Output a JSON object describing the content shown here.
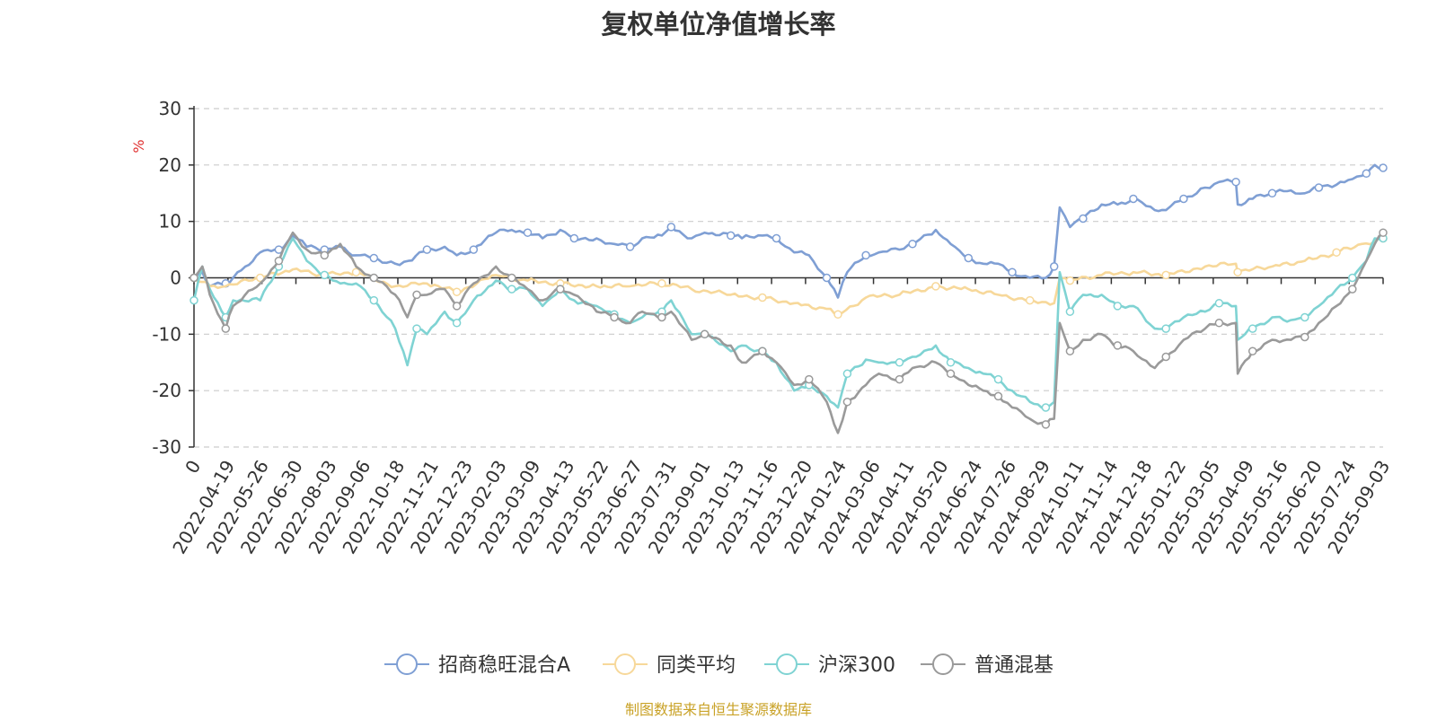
{
  "chart_data": {
    "type": "line",
    "title": "复权单位净值增长率",
    "ylabel": "%",
    "ylim": [
      -30,
      30
    ],
    "yticks": [
      -30,
      -20,
      -10,
      0,
      10,
      20,
      30
    ],
    "grid": true,
    "legend_position": "bottom",
    "x_start": "2022-03-16",
    "x_end": "2025-09-12",
    "x_ticks": [
      "0",
      "2022-04-19",
      "2022-05-26",
      "2022-06-30",
      "2022-08-03",
      "2022-09-06",
      "2022-10-18",
      "2022-11-21",
      "2022-12-23",
      "2023-02-03",
      "2023-03-09",
      "2023-04-13",
      "2023-05-22",
      "2023-06-27",
      "2023-07-31",
      "2023-09-01",
      "2023-10-13",
      "2023-11-16",
      "2023-12-20",
      "2024-01-24",
      "2024-03-06",
      "2024-04-11",
      "2024-05-20",
      "2024-06-24",
      "2024-07-26",
      "2024-08-29",
      "2024-10-11",
      "2024-11-14",
      "2024-12-18",
      "2025-01-22",
      "2025-03-05",
      "2025-04-09",
      "2025-05-16",
      "2025-06-20",
      "2025-07-24",
      "2025-09-03"
    ],
    "series": [
      {
        "name": "招商稳旺混合A",
        "color": "#7f9fd4",
        "points": [
          [
            "2022-03-16",
            0
          ],
          [
            "2022-03-25",
            1
          ],
          [
            "2022-04-02",
            -1.5
          ],
          [
            "2022-04-19",
            -1
          ],
          [
            "2022-05-10",
            2
          ],
          [
            "2022-05-26",
            4.5
          ],
          [
            "2022-06-15",
            5
          ],
          [
            "2022-06-30",
            7.5
          ],
          [
            "2022-07-15",
            5.5
          ],
          [
            "2022-08-03",
            5
          ],
          [
            "2022-08-20",
            5.5
          ],
          [
            "2022-09-06",
            4
          ],
          [
            "2022-09-25",
            3.5
          ],
          [
            "2022-10-18",
            2.5
          ],
          [
            "2022-11-01",
            3
          ],
          [
            "2022-11-21",
            5
          ],
          [
            "2022-12-10",
            5.5
          ],
          [
            "2022-12-23",
            4
          ],
          [
            "2023-01-10",
            5
          ],
          [
            "2023-02-03",
            8
          ],
          [
            "2023-02-20",
            8.5
          ],
          [
            "2023-03-09",
            8
          ],
          [
            "2023-03-25",
            7
          ],
          [
            "2023-04-13",
            8.5
          ],
          [
            "2023-04-28",
            7
          ],
          [
            "2023-05-22",
            7
          ],
          [
            "2023-06-10",
            6
          ],
          [
            "2023-06-27",
            5.5
          ],
          [
            "2023-07-10",
            7
          ],
          [
            "2023-07-31",
            7.5
          ],
          [
            "2023-08-10",
            9
          ],
          [
            "2023-09-01",
            7
          ],
          [
            "2023-09-15",
            8
          ],
          [
            "2023-10-13",
            7.5
          ],
          [
            "2023-10-25",
            7
          ],
          [
            "2023-11-16",
            7.5
          ],
          [
            "2023-12-01",
            7
          ],
          [
            "2023-12-20",
            4.5
          ],
          [
            "2024-01-05",
            4
          ],
          [
            "2024-01-24",
            0
          ],
          [
            "2024-02-05",
            -3.5
          ],
          [
            "2024-02-15",
            1
          ],
          [
            "2024-03-06",
            4
          ],
          [
            "2024-03-20",
            4.5
          ],
          [
            "2024-04-11",
            5
          ],
          [
            "2024-04-25",
            6
          ],
          [
            "2024-05-20",
            8.5
          ],
          [
            "2024-06-05",
            6
          ],
          [
            "2024-06-24",
            3.5
          ],
          [
            "2024-07-10",
            2.5
          ],
          [
            "2024-07-26",
            2.5
          ],
          [
            "2024-08-10",
            1
          ],
          [
            "2024-08-29",
            0
          ],
          [
            "2024-09-15",
            0
          ],
          [
            "2024-09-24",
            2
          ],
          [
            "2024-09-30",
            12.5
          ],
          [
            "2024-10-11",
            9
          ],
          [
            "2024-10-25",
            10.5
          ],
          [
            "2024-11-14",
            13
          ],
          [
            "2024-12-01",
            13
          ],
          [
            "2024-12-18",
            14
          ],
          [
            "2025-01-10",
            12
          ],
          [
            "2025-01-22",
            12
          ],
          [
            "2025-02-10",
            14
          ],
          [
            "2025-03-05",
            16
          ],
          [
            "2025-03-20",
            17
          ],
          [
            "2025-04-07",
            17
          ],
          [
            "2025-04-09",
            13
          ],
          [
            "2025-04-25",
            14
          ],
          [
            "2025-05-16",
            15
          ],
          [
            "2025-06-05",
            15.5
          ],
          [
            "2025-06-20",
            15
          ],
          [
            "2025-07-05",
            16
          ],
          [
            "2025-07-24",
            16.5
          ],
          [
            "2025-08-10",
            17.5
          ],
          [
            "2025-08-25",
            18.5
          ],
          [
            "2025-09-03",
            20
          ],
          [
            "2025-09-12",
            19.5
          ]
        ]
      },
      {
        "name": "同类平均",
        "color": "#f7d89a",
        "points": [
          [
            "2022-03-16",
            0
          ],
          [
            "2022-04-02",
            -1.5
          ],
          [
            "2022-04-19",
            -1.5
          ],
          [
            "2022-05-26",
            0
          ],
          [
            "2022-06-30",
            1.5
          ],
          [
            "2022-08-03",
            0.5
          ],
          [
            "2022-09-06",
            1
          ],
          [
            "2022-10-18",
            -1.5
          ],
          [
            "2022-11-21",
            -1
          ],
          [
            "2022-12-23",
            -2.5
          ],
          [
            "2023-02-03",
            0.5
          ],
          [
            "2023-03-09",
            -0.5
          ],
          [
            "2023-04-13",
            -1
          ],
          [
            "2023-05-22",
            -1.5
          ],
          [
            "2023-06-27",
            -1.5
          ],
          [
            "2023-07-31",
            -1
          ],
          [
            "2023-09-01",
            -2
          ],
          [
            "2023-10-13",
            -3
          ],
          [
            "2023-11-16",
            -3.5
          ],
          [
            "2023-12-20",
            -4.5
          ],
          [
            "2024-01-24",
            -5.5
          ],
          [
            "2024-02-05",
            -6.5
          ],
          [
            "2024-03-06",
            -3.5
          ],
          [
            "2024-04-11",
            -3
          ],
          [
            "2024-05-20",
            -1.5
          ],
          [
            "2024-06-24",
            -2
          ],
          [
            "2024-07-26",
            -3
          ],
          [
            "2024-08-29",
            -4
          ],
          [
            "2024-09-24",
            -4.5
          ],
          [
            "2024-09-30",
            0
          ],
          [
            "2024-10-11",
            -0.5
          ],
          [
            "2024-11-14",
            0.5
          ],
          [
            "2024-12-18",
            1
          ],
          [
            "2025-01-22",
            0.5
          ],
          [
            "2025-03-05",
            2
          ],
          [
            "2025-04-07",
            2.5
          ],
          [
            "2025-04-09",
            1
          ],
          [
            "2025-05-16",
            2
          ],
          [
            "2025-06-20",
            3
          ],
          [
            "2025-07-24",
            4.5
          ],
          [
            "2025-08-20",
            6
          ],
          [
            "2025-09-12",
            7
          ]
        ]
      },
      {
        "name": "沪深300",
        "color": "#7fd3d3",
        "points": [
          [
            "2022-03-16",
            -4
          ],
          [
            "2022-03-25",
            2
          ],
          [
            "2022-04-02",
            -2
          ],
          [
            "2022-04-19",
            -7
          ],
          [
            "2022-04-27",
            -4
          ],
          [
            "2022-05-26",
            -4
          ],
          [
            "2022-06-15",
            2
          ],
          [
            "2022-06-30",
            7
          ],
          [
            "2022-07-15",
            3
          ],
          [
            "2022-08-03",
            0.5
          ],
          [
            "2022-08-20",
            -1
          ],
          [
            "2022-09-06",
            -1
          ],
          [
            "2022-09-25",
            -4
          ],
          [
            "2022-10-18",
            -9
          ],
          [
            "2022-10-31",
            -15.5
          ],
          [
            "2022-11-10",
            -9
          ],
          [
            "2022-11-21",
            -10
          ],
          [
            "2022-12-10",
            -6
          ],
          [
            "2022-12-23",
            -8
          ],
          [
            "2023-01-10",
            -4
          ],
          [
            "2023-02-03",
            -0.5
          ],
          [
            "2023-02-20",
            -2
          ],
          [
            "2023-03-09",
            -2
          ],
          [
            "2023-03-25",
            -5
          ],
          [
            "2023-04-13",
            -2
          ],
          [
            "2023-04-28",
            -4
          ],
          [
            "2023-05-22",
            -5
          ],
          [
            "2023-06-10",
            -6.5
          ],
          [
            "2023-06-27",
            -8
          ],
          [
            "2023-07-10",
            -7
          ],
          [
            "2023-07-31",
            -6
          ],
          [
            "2023-08-10",
            -4
          ],
          [
            "2023-09-01",
            -10
          ],
          [
            "2023-09-15",
            -10
          ],
          [
            "2023-10-13",
            -13
          ],
          [
            "2023-10-25",
            -12
          ],
          [
            "2023-11-16",
            -13
          ],
          [
            "2023-12-01",
            -15
          ],
          [
            "2023-12-20",
            -20
          ],
          [
            "2024-01-05",
            -19
          ],
          [
            "2024-01-24",
            -21
          ],
          [
            "2024-02-05",
            -23
          ],
          [
            "2024-02-15",
            -17
          ],
          [
            "2024-03-06",
            -14.5
          ],
          [
            "2024-03-20",
            -15
          ],
          [
            "2024-04-11",
            -15
          ],
          [
            "2024-04-25",
            -14
          ],
          [
            "2024-05-20",
            -12
          ],
          [
            "2024-06-05",
            -15
          ],
          [
            "2024-06-24",
            -16
          ],
          [
            "2024-07-10",
            -17
          ],
          [
            "2024-07-26",
            -18
          ],
          [
            "2024-08-10",
            -20
          ],
          [
            "2024-08-29",
            -22
          ],
          [
            "2024-09-15",
            -23
          ],
          [
            "2024-09-24",
            -22
          ],
          [
            "2024-09-30",
            1
          ],
          [
            "2024-10-11",
            -6
          ],
          [
            "2024-10-25",
            -3
          ],
          [
            "2024-11-14",
            -3
          ],
          [
            "2024-12-01",
            -5
          ],
          [
            "2024-12-18",
            -5
          ],
          [
            "2025-01-10",
            -9
          ],
          [
            "2025-01-22",
            -9
          ],
          [
            "2025-02-10",
            -7
          ],
          [
            "2025-03-05",
            -6
          ],
          [
            "2025-03-20",
            -4.5
          ],
          [
            "2025-04-07",
            -5
          ],
          [
            "2025-04-09",
            -11
          ],
          [
            "2025-04-25",
            -9
          ],
          [
            "2025-05-16",
            -7
          ],
          [
            "2025-06-05",
            -7.5
          ],
          [
            "2025-06-20",
            -7
          ],
          [
            "2025-07-05",
            -5
          ],
          [
            "2025-07-24",
            -2
          ],
          [
            "2025-08-10",
            0
          ],
          [
            "2025-08-25",
            3
          ],
          [
            "2025-09-03",
            7
          ],
          [
            "2025-09-12",
            7
          ]
        ]
      },
      {
        "name": "普通混基",
        "color": "#9a9a9a",
        "points": [
          [
            "2022-03-16",
            0
          ],
          [
            "2022-03-25",
            2
          ],
          [
            "2022-04-02",
            -3
          ],
          [
            "2022-04-19",
            -9
          ],
          [
            "2022-04-27",
            -5
          ],
          [
            "2022-05-26",
            -1
          ],
          [
            "2022-06-15",
            3
          ],
          [
            "2022-06-30",
            8
          ],
          [
            "2022-07-15",
            5
          ],
          [
            "2022-08-03",
            4
          ],
          [
            "2022-08-20",
            6
          ],
          [
            "2022-09-06",
            2
          ],
          [
            "2022-09-25",
            0
          ],
          [
            "2022-10-18",
            -3
          ],
          [
            "2022-10-31",
            -7
          ],
          [
            "2022-11-10",
            -3
          ],
          [
            "2022-11-21",
            -3
          ],
          [
            "2022-12-10",
            -2
          ],
          [
            "2022-12-23",
            -5
          ],
          [
            "2023-01-10",
            -1
          ],
          [
            "2023-02-03",
            2
          ],
          [
            "2023-02-20",
            0
          ],
          [
            "2023-03-09",
            -2
          ],
          [
            "2023-03-25",
            -4
          ],
          [
            "2023-04-13",
            -2
          ],
          [
            "2023-04-28",
            -3
          ],
          [
            "2023-05-22",
            -6
          ],
          [
            "2023-06-10",
            -7
          ],
          [
            "2023-06-27",
            -8
          ],
          [
            "2023-07-10",
            -6
          ],
          [
            "2023-07-31",
            -7
          ],
          [
            "2023-08-10",
            -6
          ],
          [
            "2023-09-01",
            -11
          ],
          [
            "2023-09-15",
            -10
          ],
          [
            "2023-10-13",
            -12
          ],
          [
            "2023-10-25",
            -15
          ],
          [
            "2023-11-16",
            -13
          ],
          [
            "2023-12-01",
            -15
          ],
          [
            "2023-12-20",
            -19
          ],
          [
            "2024-01-05",
            -18
          ],
          [
            "2024-01-24",
            -22
          ],
          [
            "2024-02-05",
            -27.5
          ],
          [
            "2024-02-15",
            -22
          ],
          [
            "2024-03-06",
            -19
          ],
          [
            "2024-03-20",
            -17
          ],
          [
            "2024-04-11",
            -18
          ],
          [
            "2024-04-25",
            -16
          ],
          [
            "2024-05-20",
            -15
          ],
          [
            "2024-06-05",
            -17
          ],
          [
            "2024-06-24",
            -19
          ],
          [
            "2024-07-10",
            -20
          ],
          [
            "2024-07-26",
            -21
          ],
          [
            "2024-08-10",
            -23
          ],
          [
            "2024-08-29",
            -25
          ],
          [
            "2024-09-15",
            -26
          ],
          [
            "2024-09-24",
            -25
          ],
          [
            "2024-09-30",
            -8
          ],
          [
            "2024-10-11",
            -13
          ],
          [
            "2024-10-25",
            -11
          ],
          [
            "2024-11-14",
            -10
          ],
          [
            "2024-12-01",
            -12
          ],
          [
            "2024-12-18",
            -13
          ],
          [
            "2025-01-10",
            -16
          ],
          [
            "2025-01-22",
            -14
          ],
          [
            "2025-02-10",
            -11
          ],
          [
            "2025-03-05",
            -9
          ],
          [
            "2025-03-20",
            -8
          ],
          [
            "2025-04-07",
            -8
          ],
          [
            "2025-04-09",
            -17
          ],
          [
            "2025-04-25",
            -13
          ],
          [
            "2025-05-16",
            -11
          ],
          [
            "2025-06-05",
            -11
          ],
          [
            "2025-06-20",
            -10.5
          ],
          [
            "2025-07-05",
            -8
          ],
          [
            "2025-07-24",
            -5
          ],
          [
            "2025-08-10",
            -2
          ],
          [
            "2025-08-25",
            3
          ],
          [
            "2025-09-03",
            6
          ],
          [
            "2025-09-12",
            8
          ]
        ]
      }
    ]
  },
  "footer": {
    "text": "制图数据来自恒生聚源数据库",
    "color": "#c9a227"
  }
}
